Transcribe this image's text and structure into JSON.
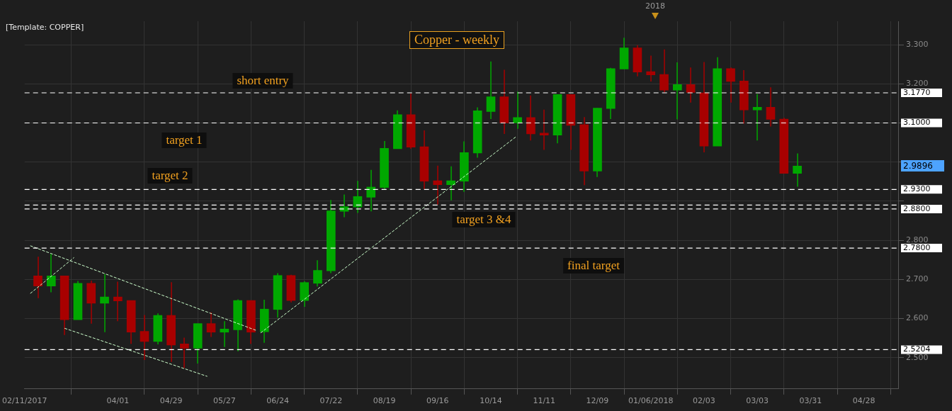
{
  "chart_data": {
    "type": "candlestick",
    "title": "Copper - weekly",
    "annotations": [
      "[Template: COPPER]",
      "short entry",
      "target 1",
      "target 2",
      "target 3 &4",
      "final target",
      "2.9896",
      "2018"
    ],
    "xlim": [
      "2017-02-11",
      "2018-05-16"
    ],
    "xticks": [
      {
        "value": "2017-02-11",
        "label": "02/11/2017"
      },
      {
        "value": "2017-04-01",
        "label": "04/01"
      },
      {
        "value": "2017-04-29",
        "label": "04/29"
      },
      {
        "value": "2017-05-27",
        "label": "05/27"
      },
      {
        "value": "2017-06-24",
        "label": "06/24"
      },
      {
        "value": "2017-07-22",
        "label": "07/22"
      },
      {
        "value": "2017-08-19",
        "label": "08/19"
      },
      {
        "value": "2017-09-16",
        "label": "09/16"
      },
      {
        "value": "2017-10-14",
        "label": "10/14"
      },
      {
        "value": "2017-11-11",
        "label": "11/11"
      },
      {
        "value": "2017-12-09",
        "label": "12/09"
      },
      {
        "value": "2018-01-06",
        "label": "01/06/2018"
      },
      {
        "value": "2018-02-03",
        "label": "02/03"
      },
      {
        "value": "2018-03-03",
        "label": "03/03"
      },
      {
        "value": "2018-03-31",
        "label": "03/31"
      },
      {
        "value": "2018-04-28",
        "label": "04/28"
      }
    ],
    "ylim": [
      2.42,
      3.36
    ],
    "yticks": [
      {
        "value": 2.5,
        "label": "2.500"
      },
      {
        "value": 2.6,
        "label": "2.600"
      },
      {
        "value": 2.7,
        "label": "2.700"
      },
      {
        "value": 2.8,
        "label": "2.800"
      },
      {
        "value": 2.9,
        "label": null
      },
      {
        "value": 3.0,
        "label": null
      },
      {
        "value": 3.1,
        "label": null
      },
      {
        "value": 3.2,
        "label": "3.200"
      },
      {
        "value": 3.3,
        "label": "3.300"
      }
    ],
    "grid": true,
    "x": [
      "2017-02-18",
      "2017-02-25",
      "2017-03-04",
      "2017-03-11",
      "2017-03-18",
      "2017-03-25",
      "2017-04-01",
      "2017-04-08",
      "2017-04-15",
      "2017-04-22",
      "2017-04-29",
      "2017-05-06",
      "2017-05-13",
      "2017-05-20",
      "2017-05-27",
      "2017-06-03",
      "2017-06-10",
      "2017-06-17",
      "2017-06-24",
      "2017-07-01",
      "2017-07-08",
      "2017-07-15",
      "2017-07-22",
      "2017-07-29",
      "2017-08-05",
      "2017-08-12",
      "2017-08-19",
      "2017-08-26",
      "2017-09-02",
      "2017-09-09",
      "2017-09-16",
      "2017-09-23",
      "2017-09-30",
      "2017-10-07",
      "2017-10-14",
      "2017-10-21",
      "2017-10-28",
      "2017-11-04",
      "2017-11-11",
      "2017-11-18",
      "2017-11-25",
      "2017-12-02",
      "2017-12-09",
      "2017-12-16",
      "2017-12-23",
      "2017-12-30",
      "2018-01-06",
      "2018-01-13",
      "2018-01-20",
      "2018-01-27",
      "2018-02-03",
      "2018-02-10",
      "2018-02-17",
      "2018-02-24",
      "2018-03-03",
      "2018-03-10",
      "2018-03-17",
      "2018-03-24"
    ],
    "ohlc": [
      [
        2.709,
        2.758,
        2.652,
        2.683
      ],
      [
        2.683,
        2.765,
        2.667,
        2.709
      ],
      [
        2.709,
        2.709,
        2.558,
        2.597
      ],
      [
        2.597,
        2.696,
        2.597,
        2.69
      ],
      [
        2.69,
        2.697,
        2.587,
        2.639
      ],
      [
        2.639,
        2.713,
        2.565,
        2.655
      ],
      [
        2.655,
        2.694,
        2.593,
        2.645
      ],
      [
        2.646,
        2.646,
        2.535,
        2.565
      ],
      [
        2.567,
        2.609,
        2.494,
        2.541
      ],
      [
        2.541,
        2.613,
        2.534,
        2.608
      ],
      [
        2.608,
        2.693,
        2.489,
        2.532
      ],
      [
        2.535,
        2.551,
        2.473,
        2.524
      ],
      [
        2.524,
        2.587,
        2.485,
        2.587
      ],
      [
        2.587,
        2.616,
        2.553,
        2.565
      ],
      [
        2.565,
        2.593,
        2.527,
        2.573
      ],
      [
        2.571,
        2.649,
        2.516,
        2.646
      ],
      [
        2.646,
        2.646,
        2.535,
        2.565
      ],
      [
        2.566,
        2.648,
        2.538,
        2.624
      ],
      [
        2.623,
        2.716,
        2.602,
        2.71
      ],
      [
        2.71,
        2.712,
        2.641,
        2.646
      ],
      [
        2.646,
        2.695,
        2.63,
        2.692
      ],
      [
        2.69,
        2.749,
        2.682,
        2.723
      ],
      [
        2.722,
        2.903,
        2.716,
        2.875
      ],
      [
        2.874,
        2.917,
        2.859,
        2.886
      ],
      [
        2.885,
        2.952,
        2.87,
        2.912
      ],
      [
        2.91,
        2.98,
        2.874,
        2.936
      ],
      [
        2.935,
        3.054,
        2.93,
        3.035
      ],
      [
        3.034,
        3.132,
        3.034,
        3.121
      ],
      [
        3.121,
        3.175,
        3.034,
        3.038
      ],
      [
        3.039,
        3.081,
        2.931,
        2.951
      ],
      [
        2.952,
        2.991,
        2.891,
        2.942
      ],
      [
        2.942,
        2.989,
        2.902,
        2.952
      ],
      [
        2.951,
        3.053,
        2.924,
        3.024
      ],
      [
        3.023,
        3.14,
        3.011,
        3.131
      ],
      [
        3.129,
        3.257,
        3.11,
        3.167
      ],
      [
        3.167,
        3.236,
        3.072,
        3.1
      ],
      [
        3.1,
        3.18,
        3.085,
        3.114
      ],
      [
        3.114,
        3.17,
        3.055,
        3.072
      ],
      [
        3.074,
        3.134,
        3.031,
        3.069
      ],
      [
        3.069,
        3.173,
        3.048,
        3.173
      ],
      [
        3.173,
        3.173,
        3.031,
        3.094
      ],
      [
        3.096,
        3.115,
        2.941,
        2.977
      ],
      [
        2.977,
        3.138,
        2.962,
        3.138
      ],
      [
        3.137,
        3.241,
        3.11,
        3.239
      ],
      [
        3.238,
        3.318,
        3.238,
        3.292
      ],
      [
        3.292,
        3.299,
        3.219,
        3.23
      ],
      [
        3.231,
        3.272,
        3.206,
        3.223
      ],
      [
        3.224,
        3.288,
        3.178,
        3.184
      ],
      [
        3.184,
        3.255,
        3.109,
        3.198
      ],
      [
        3.198,
        3.242,
        3.152,
        3.178
      ],
      [
        3.177,
        3.256,
        3.025,
        3.041
      ],
      [
        3.041,
        3.268,
        3.041,
        3.239
      ],
      [
        3.239,
        3.242,
        3.152,
        3.206
      ],
      [
        3.207,
        3.235,
        3.098,
        3.133
      ],
      [
        3.133,
        3.174,
        3.055,
        3.14
      ],
      [
        3.14,
        3.191,
        3.091,
        3.109
      ],
      [
        3.11,
        3.113,
        2.971,
        2.971
      ],
      [
        2.971,
        3.022,
        2.937,
        2.9896
      ]
    ],
    "colors": [
      "#a80000",
      "#00a800",
      "#a80000",
      "#00a800",
      "#a80000",
      "#00a800",
      "#a80000",
      "#a80000",
      "#a80000",
      "#00a800",
      "#a80000",
      "#a80000",
      "#00a800",
      "#a80000",
      "#00a800",
      "#00a800",
      "#a80000",
      "#00a800",
      "#00a800",
      "#a80000",
      "#00a800",
      "#00a800",
      "#00a800",
      "#00a800",
      "#00a800",
      "#00a800",
      "#00a800",
      "#00a800",
      "#a80000",
      "#a80000",
      "#a80000",
      "#00a800",
      "#00a800",
      "#00a800",
      "#00a800",
      "#a80000",
      "#00a800",
      "#a80000",
      "#a80000",
      "#00a800",
      "#a80000",
      "#a80000",
      "#00a800",
      "#00a800",
      "#00a800",
      "#a80000",
      "#a80000",
      "#a80000",
      "#00a800",
      "#a80000",
      "#a80000",
      "#00a800",
      "#a80000",
      "#a80000",
      "#00a800",
      "#a80000",
      "#a80000",
      "#00a800"
    ],
    "series": [
      {
        "type": "line",
        "x": [
          "2017-02-14",
          "2017-06-13"
        ],
        "values": [
          2.786,
          2.569
        ],
        "color": "#ccffcc",
        "line_style": "dashed"
      },
      {
        "type": "line",
        "x": [
          "2017-03-04",
          "2017-05-18"
        ],
        "values": [
          2.575,
          2.452
        ],
        "color": "#ccffcc",
        "line_style": "dashed"
      },
      {
        "type": "line",
        "x": [
          "2017-02-14",
          "2017-03-09"
        ],
        "values": [
          2.664,
          2.756
        ],
        "color": "#ccffcc",
        "line_style": "dashed"
      },
      {
        "type": "line",
        "x": [
          "2017-06-15",
          "2017-10-27"
        ],
        "values": [
          2.563,
          3.064
        ],
        "color": "#ccffcc",
        "line_style": "dashed"
      }
    ],
    "ref_lines": [
      {
        "axis": "y",
        "value": 3.177,
        "label": "3.1770",
        "color": "#ffffff",
        "line_style": "dashed"
      },
      {
        "axis": "y",
        "value": 3.1,
        "label": "3.1000",
        "color": "#ffffff",
        "line_style": "dashed"
      },
      {
        "axis": "y",
        "value": 2.93,
        "label": "2.9300",
        "color": "#ffffff",
        "line_style": "dashed"
      },
      {
        "axis": "y",
        "value": 2.89,
        "color": "#ffffff",
        "line_style": "dashed"
      },
      {
        "axis": "y",
        "value": 2.88,
        "label": "2.8800",
        "color": "#ffffff",
        "line_style": "dashed"
      },
      {
        "axis": "y",
        "value": 2.78,
        "label": "2.7800",
        "color": "#ffffff",
        "line_style": "dashed"
      },
      {
        "axis": "y",
        "value": 2.5204,
        "label": "2.5204",
        "color": "#ffffff",
        "line_style": "dashed"
      }
    ]
  }
}
